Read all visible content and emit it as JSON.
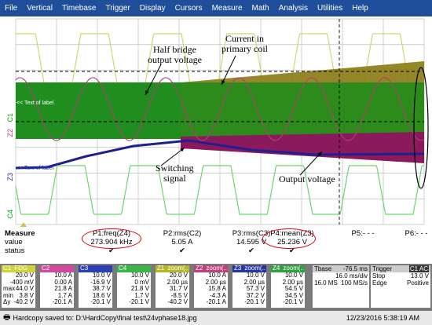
{
  "menu": [
    "File",
    "Vertical",
    "Timebase",
    "Trigger",
    "Display",
    "Cursors",
    "Measure",
    "Math",
    "Analysis",
    "Utilities",
    "Help"
  ],
  "annotations": {
    "half_bridge": "Half bridge\noutput voltage",
    "current": "Current in\nprimary coil",
    "switching": "Switching\nsignal",
    "output": "Output voltage"
  },
  "trace_labels": {
    "label1": "<< Text of label",
    "label2": "<< Text of label"
  },
  "channel_markers": [
    "C1",
    "Z2",
    "Z3",
    "C4"
  ],
  "measure": {
    "title": "Measure",
    "value_label": "value",
    "status_label": "status",
    "params": [
      {
        "name": "P1:freq(Z4)",
        "value": "273.904 kHz",
        "check": "✔"
      },
      {
        "name": "P2:rms(C2)",
        "value": "5.05 A",
        "check": "✔"
      },
      {
        "name": "P3:rms(C3)",
        "value": "14.595 V",
        "check": "✔"
      },
      {
        "name": "P4:mean(Z3)",
        "value": "25.236 V",
        "check": "✔"
      },
      {
        "name": "P5:- - -",
        "value": "",
        "check": ""
      },
      {
        "name": "P6:- - -",
        "value": "",
        "check": ""
      }
    ]
  },
  "channels": [
    {
      "name": "C1",
      "tag": "FDG",
      "color": "#cfd23a",
      "rows": [
        "20.0 V",
        "-400 mV",
        "44.0 V",
        "3.8 V",
        "-40.2 V"
      ]
    },
    {
      "name": "C2",
      "tag": "",
      "color": "#d14aa0",
      "rows": [
        "10.0 A",
        "0.00 A",
        "21.8 A",
        "1.7 A",
        "-20.1 A"
      ]
    },
    {
      "name": "C3",
      "tag": "",
      "color": "#2c3fb5",
      "rows": [
        "10.0 V",
        "-16.9 V",
        "38.7 V",
        "18.6 V",
        "-20.1 V"
      ]
    },
    {
      "name": "C4",
      "tag": "",
      "color": "#3bb54a",
      "rows": [
        "10.0 V",
        "0 mV",
        "21.8 V",
        "1.7 V",
        "-20.1 V"
      ]
    },
    {
      "name": "Z1",
      "tag": "zoom(..",
      "color": "#b7b52a",
      "rows": [
        "20.0 V",
        "2.00 µs",
        "31.7 V",
        "-8.5 V",
        "-40.2 V"
      ]
    },
    {
      "name": "Z2",
      "tag": "zoom(..",
      "color": "#c0407a",
      "rows": [
        "10.0 A",
        "2.00 µs",
        "15.8 A",
        "-4.3 A",
        "-20.1 A"
      ]
    },
    {
      "name": "Z3",
      "tag": "zoom(..",
      "color": "#2636a0",
      "rows": [
        "10.0 V",
        "2.00 µs",
        "57.3 V",
        "37.2 V",
        "-20.1 V"
      ]
    },
    {
      "name": "Z4",
      "tag": "zoom(..",
      "color": "#31a040",
      "rows": [
        "10.0 V",
        "2.00 µs",
        "54.5 V",
        "34.5 V",
        "-20.1 V"
      ]
    }
  ],
  "row_labels": [
    "",
    "",
    "max",
    "min",
    "Δy"
  ],
  "tbase": {
    "title": "Tbase",
    "offset": "-76.5 ms",
    "rate1": "16.0 ms/div",
    "rate2": "16.0 MS",
    "rate3": "100 MS/s"
  },
  "trigger": {
    "title": "Trigger",
    "tag": "C1 AC",
    "mode": "Stop",
    "level": "13.0 V",
    "type": "Edge",
    "slope": "Positive"
  },
  "status": {
    "text": "Hardcopy saved to: D:\\HardCopy\\final test\\24vphase18.jpg",
    "datetime": "12/23/2016 5:38:19 AM"
  },
  "colors": {
    "menubar": "#1f4f9a",
    "grid": "#bdbdbd",
    "yellow": "#d2d56e",
    "green": "#1f8e1f",
    "magenta": "#8a1a5c",
    "blue": "#1f1f8f",
    "olive": "#8a7a12"
  }
}
